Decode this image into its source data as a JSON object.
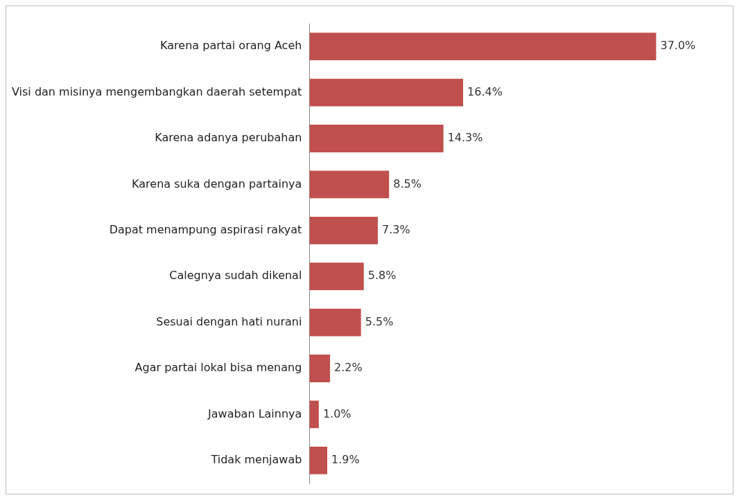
{
  "chart_data": {
    "type": "bar",
    "orientation": "horizontal",
    "categories": [
      "Karena partai orang Aceh",
      "Visi dan misinya mengembangkan daerah setempat",
      "Karena adanya perubahan",
      "Karena suka dengan partainya",
      "Dapat menampung aspirasi rakyat",
      "Calegnya sudah dikenal",
      "Sesuai dengan hati nurani",
      "Agar partai lokal bisa menang",
      "Jawaban Lainnya",
      "Tidak menjawab"
    ],
    "values": [
      37.0,
      16.4,
      14.3,
      8.5,
      7.3,
      5.8,
      5.5,
      2.2,
      1.0,
      1.9
    ],
    "value_labels": [
      "37.0%",
      "16.4%",
      "14.3%",
      "8.5%",
      "7.3%",
      "5.8%",
      "5.5%",
      "2.2%",
      "1.0%",
      "1.9%"
    ],
    "color": "#c0504d",
    "grid": false,
    "legend": false,
    "tick_labels": "y"
  }
}
